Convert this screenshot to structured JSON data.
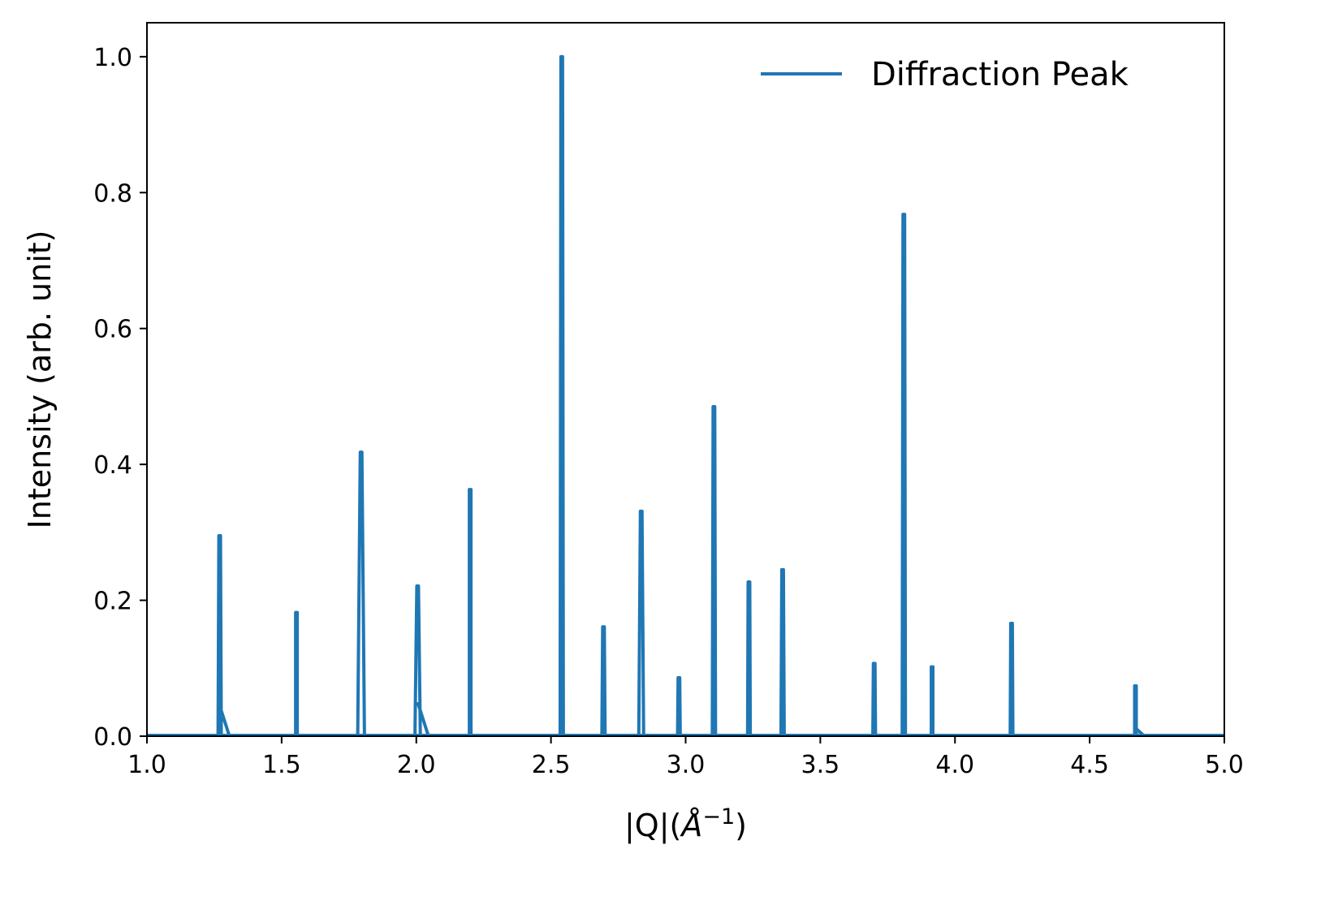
{
  "chart_data": {
    "type": "line",
    "title": "",
    "xlabel_parts": {
      "base": "|Q|(",
      "unit": "Å",
      "exp": "−1",
      "close": ")"
    },
    "ylabel": "Intensity (arb. unit)",
    "xlim": [
      1.0,
      5.0
    ],
    "ylim": [
      0.0,
      1.05
    ],
    "x_ticks": [
      1.0,
      1.5,
      2.0,
      2.5,
      3.0,
      3.5,
      4.0,
      4.5,
      5.0
    ],
    "x_tick_labels": [
      "1.0",
      "1.5",
      "2.0",
      "2.5",
      "3.0",
      "3.5",
      "4.0",
      "4.5",
      "5.0"
    ],
    "y_ticks": [
      0.0,
      0.2,
      0.4,
      0.6,
      0.8,
      1.0
    ],
    "y_tick_labels": [
      "0.0",
      "0.2",
      "0.4",
      "0.6",
      "0.8",
      "1.0"
    ],
    "legend_position": "top-right",
    "grid": false,
    "series": [
      {
        "name": "Diffraction Peak",
        "color": "#1f77b4",
        "peaks": [
          {
            "x": 1.27,
            "y": 0.295,
            "width": 0.012,
            "tail": 0.045
          },
          {
            "x": 1.555,
            "y": 0.182,
            "width": 0.006
          },
          {
            "x": 1.795,
            "y": 0.418,
            "width": 0.025
          },
          {
            "x": 2.005,
            "y": 0.221,
            "width": 0.02,
            "tail": 0.05
          },
          {
            "x": 2.2,
            "y": 0.363,
            "width": 0.006
          },
          {
            "x": 2.54,
            "y": 1.0,
            "width": 0.012
          },
          {
            "x": 2.695,
            "y": 0.161,
            "width": 0.012
          },
          {
            "x": 2.835,
            "y": 0.331,
            "width": 0.018
          },
          {
            "x": 2.975,
            "y": 0.086,
            "width": 0.01
          },
          {
            "x": 3.105,
            "y": 0.485,
            "width": 0.012
          },
          {
            "x": 3.235,
            "y": 0.227,
            "width": 0.01
          },
          {
            "x": 3.36,
            "y": 0.245,
            "width": 0.012
          },
          {
            "x": 3.7,
            "y": 0.107,
            "width": 0.01
          },
          {
            "x": 3.81,
            "y": 0.768,
            "width": 0.012
          },
          {
            "x": 3.915,
            "y": 0.102,
            "width": 0.006
          },
          {
            "x": 4.21,
            "y": 0.166,
            "width": 0.01
          },
          {
            "x": 4.67,
            "y": 0.074,
            "width": 0.006,
            "tail": 0.012
          }
        ]
      }
    ]
  }
}
